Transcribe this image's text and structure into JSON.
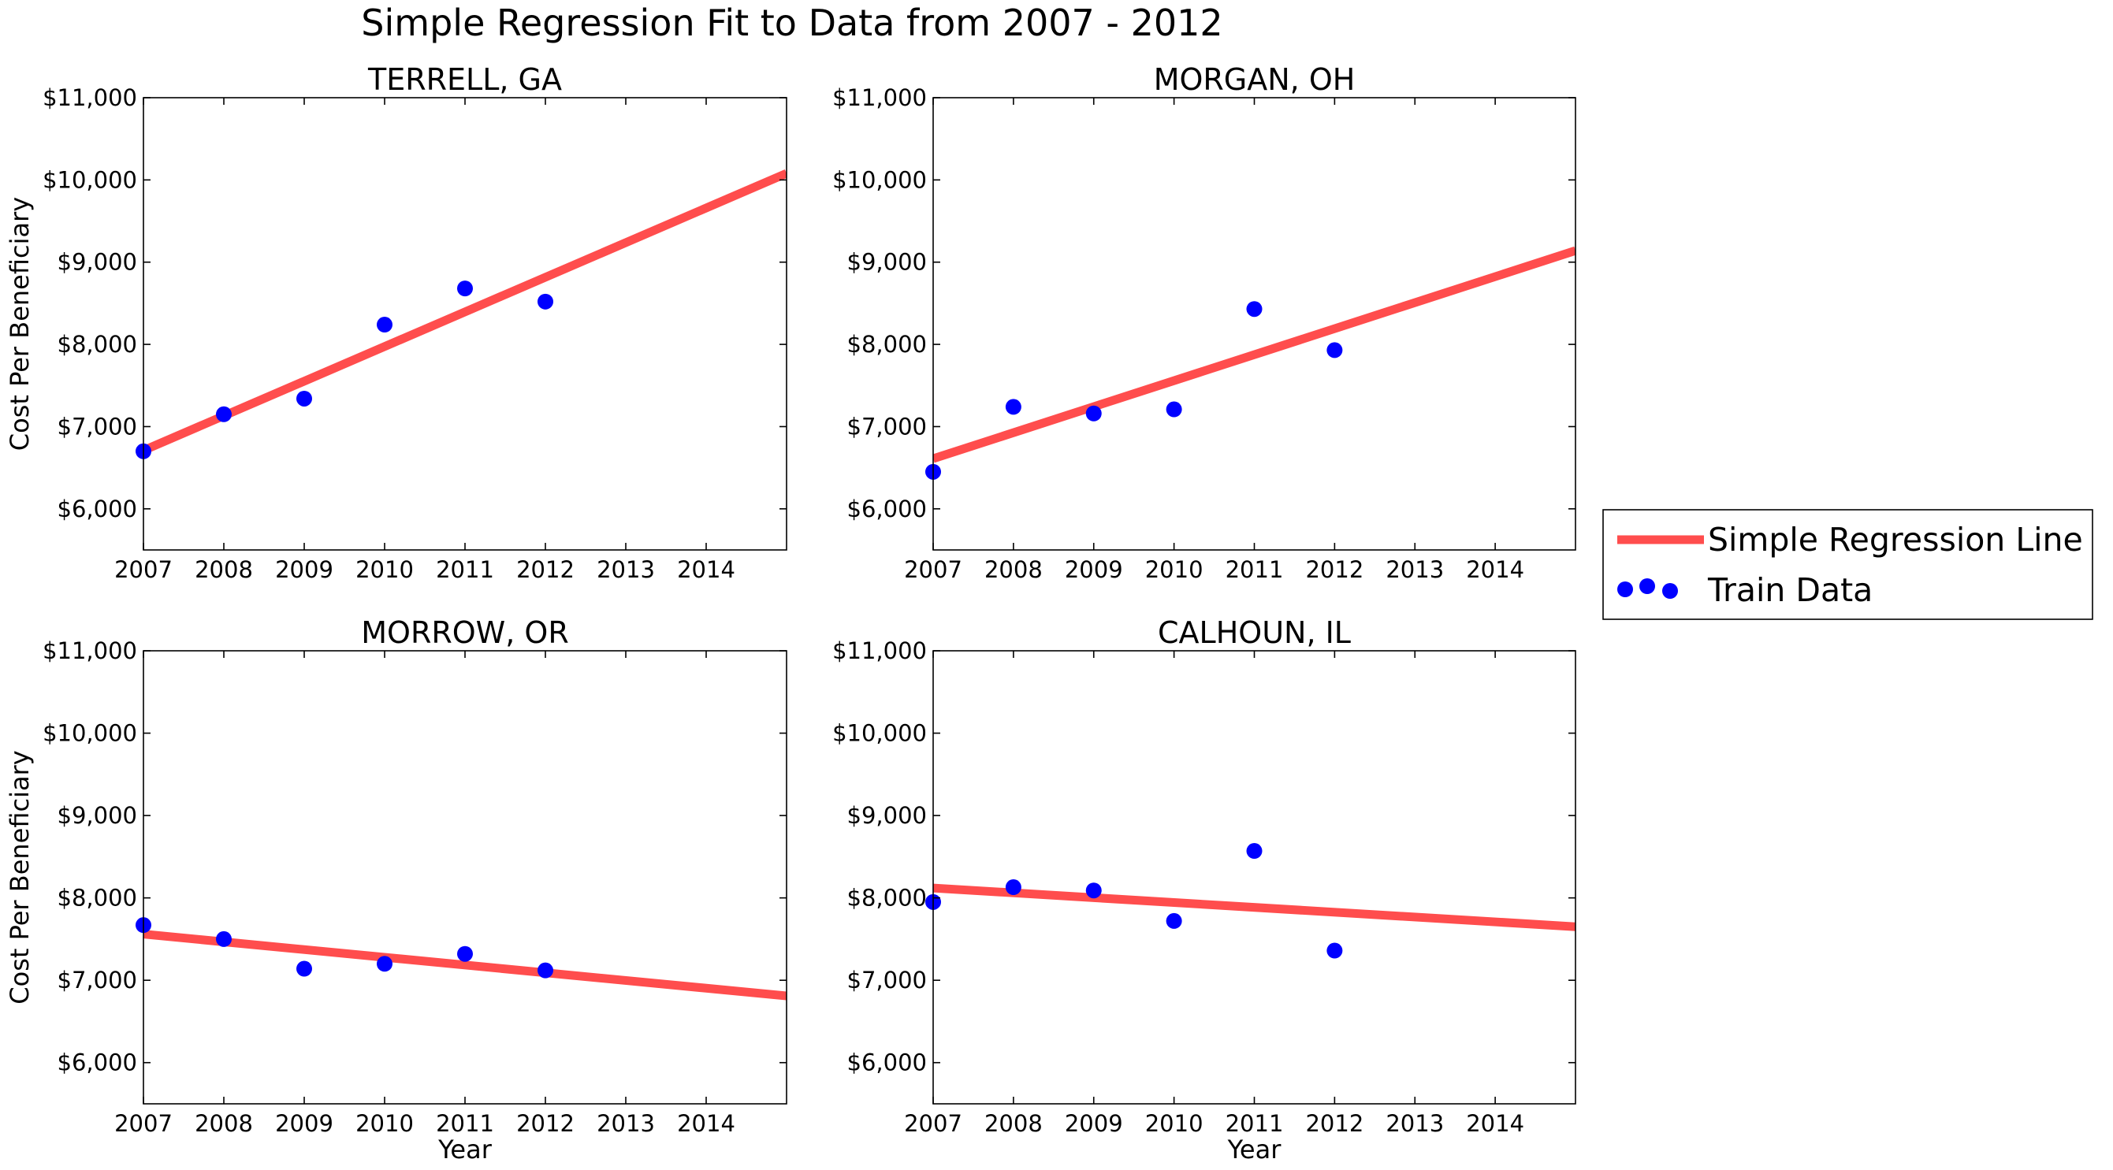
{
  "chart_data": {
    "suptitle": "Simple Regression Fit to Data from 2007 - 2012",
    "type": "scatter",
    "xlim": [
      2007,
      2015
    ],
    "ylim": [
      5500,
      11000
    ],
    "xticks": [
      "2007",
      "2008",
      "2009",
      "2010",
      "2011",
      "2012",
      "2013",
      "2014"
    ],
    "yticks": [
      "$6,000",
      "$7,000",
      "$8,000",
      "$9,000",
      "$10,000",
      "$11,000"
    ],
    "colors": {
      "line": "#ff4d4d",
      "points": "#0000ff"
    },
    "legend": {
      "position": "right",
      "entries": [
        "Simple Regression Line",
        "Train Data"
      ]
    },
    "panels": [
      {
        "title": "TERRELL, GA",
        "xlabel": "",
        "ylabel": "Cost Per Beneficiary",
        "x": [
          2007,
          2008,
          2009,
          2010,
          2011,
          2012
        ],
        "y": [
          6700,
          7150,
          7340,
          8240,
          8680,
          8520
        ],
        "line": {
          "x": [
            2007,
            2015
          ],
          "y": [
            6710,
            10080
          ]
        }
      },
      {
        "title": "MORGAN, OH",
        "xlabel": "",
        "ylabel": "",
        "x": [
          2007,
          2008,
          2009,
          2010,
          2011,
          2012
        ],
        "y": [
          6450,
          7240,
          7160,
          7210,
          8430,
          7930
        ],
        "line": {
          "x": [
            2007,
            2015
          ],
          "y": [
            6610,
            9140
          ]
        }
      },
      {
        "title": "MORROW, OR",
        "xlabel": "Year",
        "ylabel": "Cost Per Beneficiary",
        "x": [
          2007,
          2008,
          2009,
          2010,
          2011,
          2012
        ],
        "y": [
          7670,
          7500,
          7140,
          7200,
          7320,
          7120
        ],
        "line": {
          "x": [
            2007,
            2015
          ],
          "y": [
            7560,
            6810
          ]
        }
      },
      {
        "title": "CALHOUN, IL",
        "xlabel": "Year",
        "ylabel": "",
        "x": [
          2007,
          2008,
          2009,
          2010,
          2011,
          2012
        ],
        "y": [
          7950,
          8130,
          8090,
          7720,
          8570,
          7360
        ],
        "line": {
          "x": [
            2007,
            2015
          ],
          "y": [
            8120,
            7650
          ]
        }
      }
    ]
  }
}
